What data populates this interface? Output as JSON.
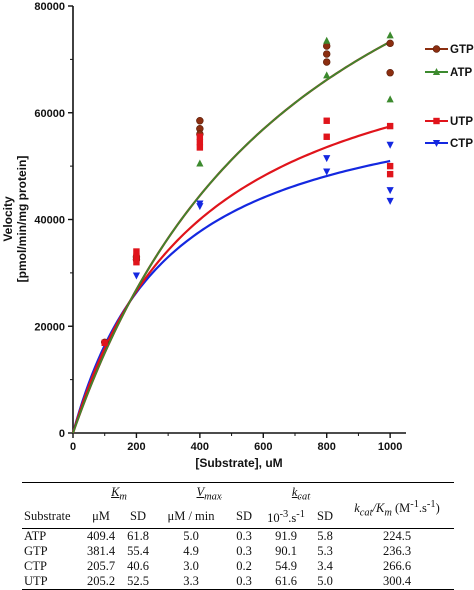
{
  "chart_data": {
    "type": "scatter",
    "xlabel": "[Substrate], uM",
    "ylabel": "Velocity [pmol/min/mg protein]",
    "xlim": [
      0,
      1050
    ],
    "ylim": [
      0,
      80000
    ],
    "xticks": [
      0,
      200,
      400,
      600,
      800,
      1000
    ],
    "yticks": [
      0,
      20000,
      40000,
      60000,
      80000
    ],
    "x_tick_labels": [
      "0",
      "200",
      "400",
      "600",
      "800",
      "1000"
    ],
    "y_tick_labels": [
      "0",
      "20000",
      "40000",
      "60000",
      "80000"
    ],
    "legend_placement": "right",
    "series": [
      {
        "name": "GTP",
        "color": "#8b2e10",
        "marker": "circle",
        "fit": {
          "vmax": 129000,
          "km": 760
        },
        "points": [
          [
            100,
            17000
          ],
          [
            200,
            33000
          ],
          [
            200,
            32500
          ],
          [
            400,
            58500
          ],
          [
            400,
            57000
          ],
          [
            400,
            56000
          ],
          [
            800,
            72500
          ],
          [
            800,
            71000
          ],
          [
            800,
            69500
          ],
          [
            1000,
            73000
          ],
          [
            1000,
            67500
          ]
        ]
      },
      {
        "name": "ATP",
        "color": "#3c8a2e",
        "marker": "triangle-up",
        "fit": {
          "vmax": 129000,
          "km": 760
        },
        "points": [
          [
            200,
            33500
          ],
          [
            400,
            50500
          ],
          [
            800,
            73500
          ],
          [
            800,
            67000
          ],
          [
            1000,
            74500
          ],
          [
            1000,
            62500
          ]
        ]
      },
      {
        "name": "UTP",
        "color": "#e0141b",
        "marker": "square",
        "fit": {
          "vmax": 81000,
          "km": 410
        },
        "points": [
          [
            100,
            16900
          ],
          [
            200,
            34000
          ],
          [
            200,
            33000
          ],
          [
            200,
            32000
          ],
          [
            400,
            55500
          ],
          [
            400,
            54500
          ],
          [
            400,
            53500
          ],
          [
            800,
            58500
          ],
          [
            800,
            55500
          ],
          [
            1000,
            57500
          ],
          [
            1000,
            50000
          ],
          [
            1000,
            48500
          ]
        ]
      },
      {
        "name": "CTP",
        "color": "#1428e0",
        "marker": "triangle-down",
        "fit": {
          "vmax": 66500,
          "km": 305
        },
        "points": [
          [
            200,
            29500
          ],
          [
            400,
            43000
          ],
          [
            400,
            42500
          ],
          [
            800,
            51500
          ],
          [
            800,
            49000
          ],
          [
            1000,
            54000
          ],
          [
            1000,
            45500
          ],
          [
            1000,
            43500
          ]
        ]
      }
    ]
  },
  "table": {
    "header_substrate": "Substrate",
    "km_main": "K",
    "km_sub": "m",
    "vmax_main": "V",
    "vmax_sub": "max",
    "kcat_main": "k",
    "kcat_sub": "cat",
    "ratio_k": "k",
    "ratio_cat": "cat",
    "ratio_slash_k": "/K",
    "ratio_m": "m",
    "ratio_unit_open": " (M",
    "ratio_unit_exp1": "-1",
    "ratio_unit_mid": ".s",
    "ratio_unit_exp2": "-1",
    "ratio_unit_close": ")",
    "unit_km": "μM",
    "unit_sd": "SD",
    "unit_vmax": "μM / min",
    "unit_kcat_base": "10",
    "unit_kcat_exp1": "-3",
    "unit_kcat_mid": ".s",
    "unit_kcat_exp2": "-1",
    "rows": [
      {
        "substrate": "ATP",
        "km": "409.4",
        "km_sd": "61.8",
        "vmax": "5.0",
        "vmax_sd": "0.3",
        "kcat": "91.9",
        "kcat_sd": "5.8",
        "ratio": "224.5"
      },
      {
        "substrate": "GTP",
        "km": "381.4",
        "km_sd": "55.4",
        "vmax": "4.9",
        "vmax_sd": "0.3",
        "kcat": "90.1",
        "kcat_sd": "5.3",
        "ratio": "236.3"
      },
      {
        "substrate": "CTP",
        "km": "205.7",
        "km_sd": "40.6",
        "vmax": "3.0",
        "vmax_sd": "0.2",
        "kcat": "54.9",
        "kcat_sd": "3.4",
        "ratio": "266.6"
      },
      {
        "substrate": "UTP",
        "km": "205.2",
        "km_sd": "52.5",
        "vmax": "3.3",
        "vmax_sd": "0.3",
        "kcat": "61.6",
        "kcat_sd": "5.0",
        "ratio": "300.4"
      }
    ]
  }
}
